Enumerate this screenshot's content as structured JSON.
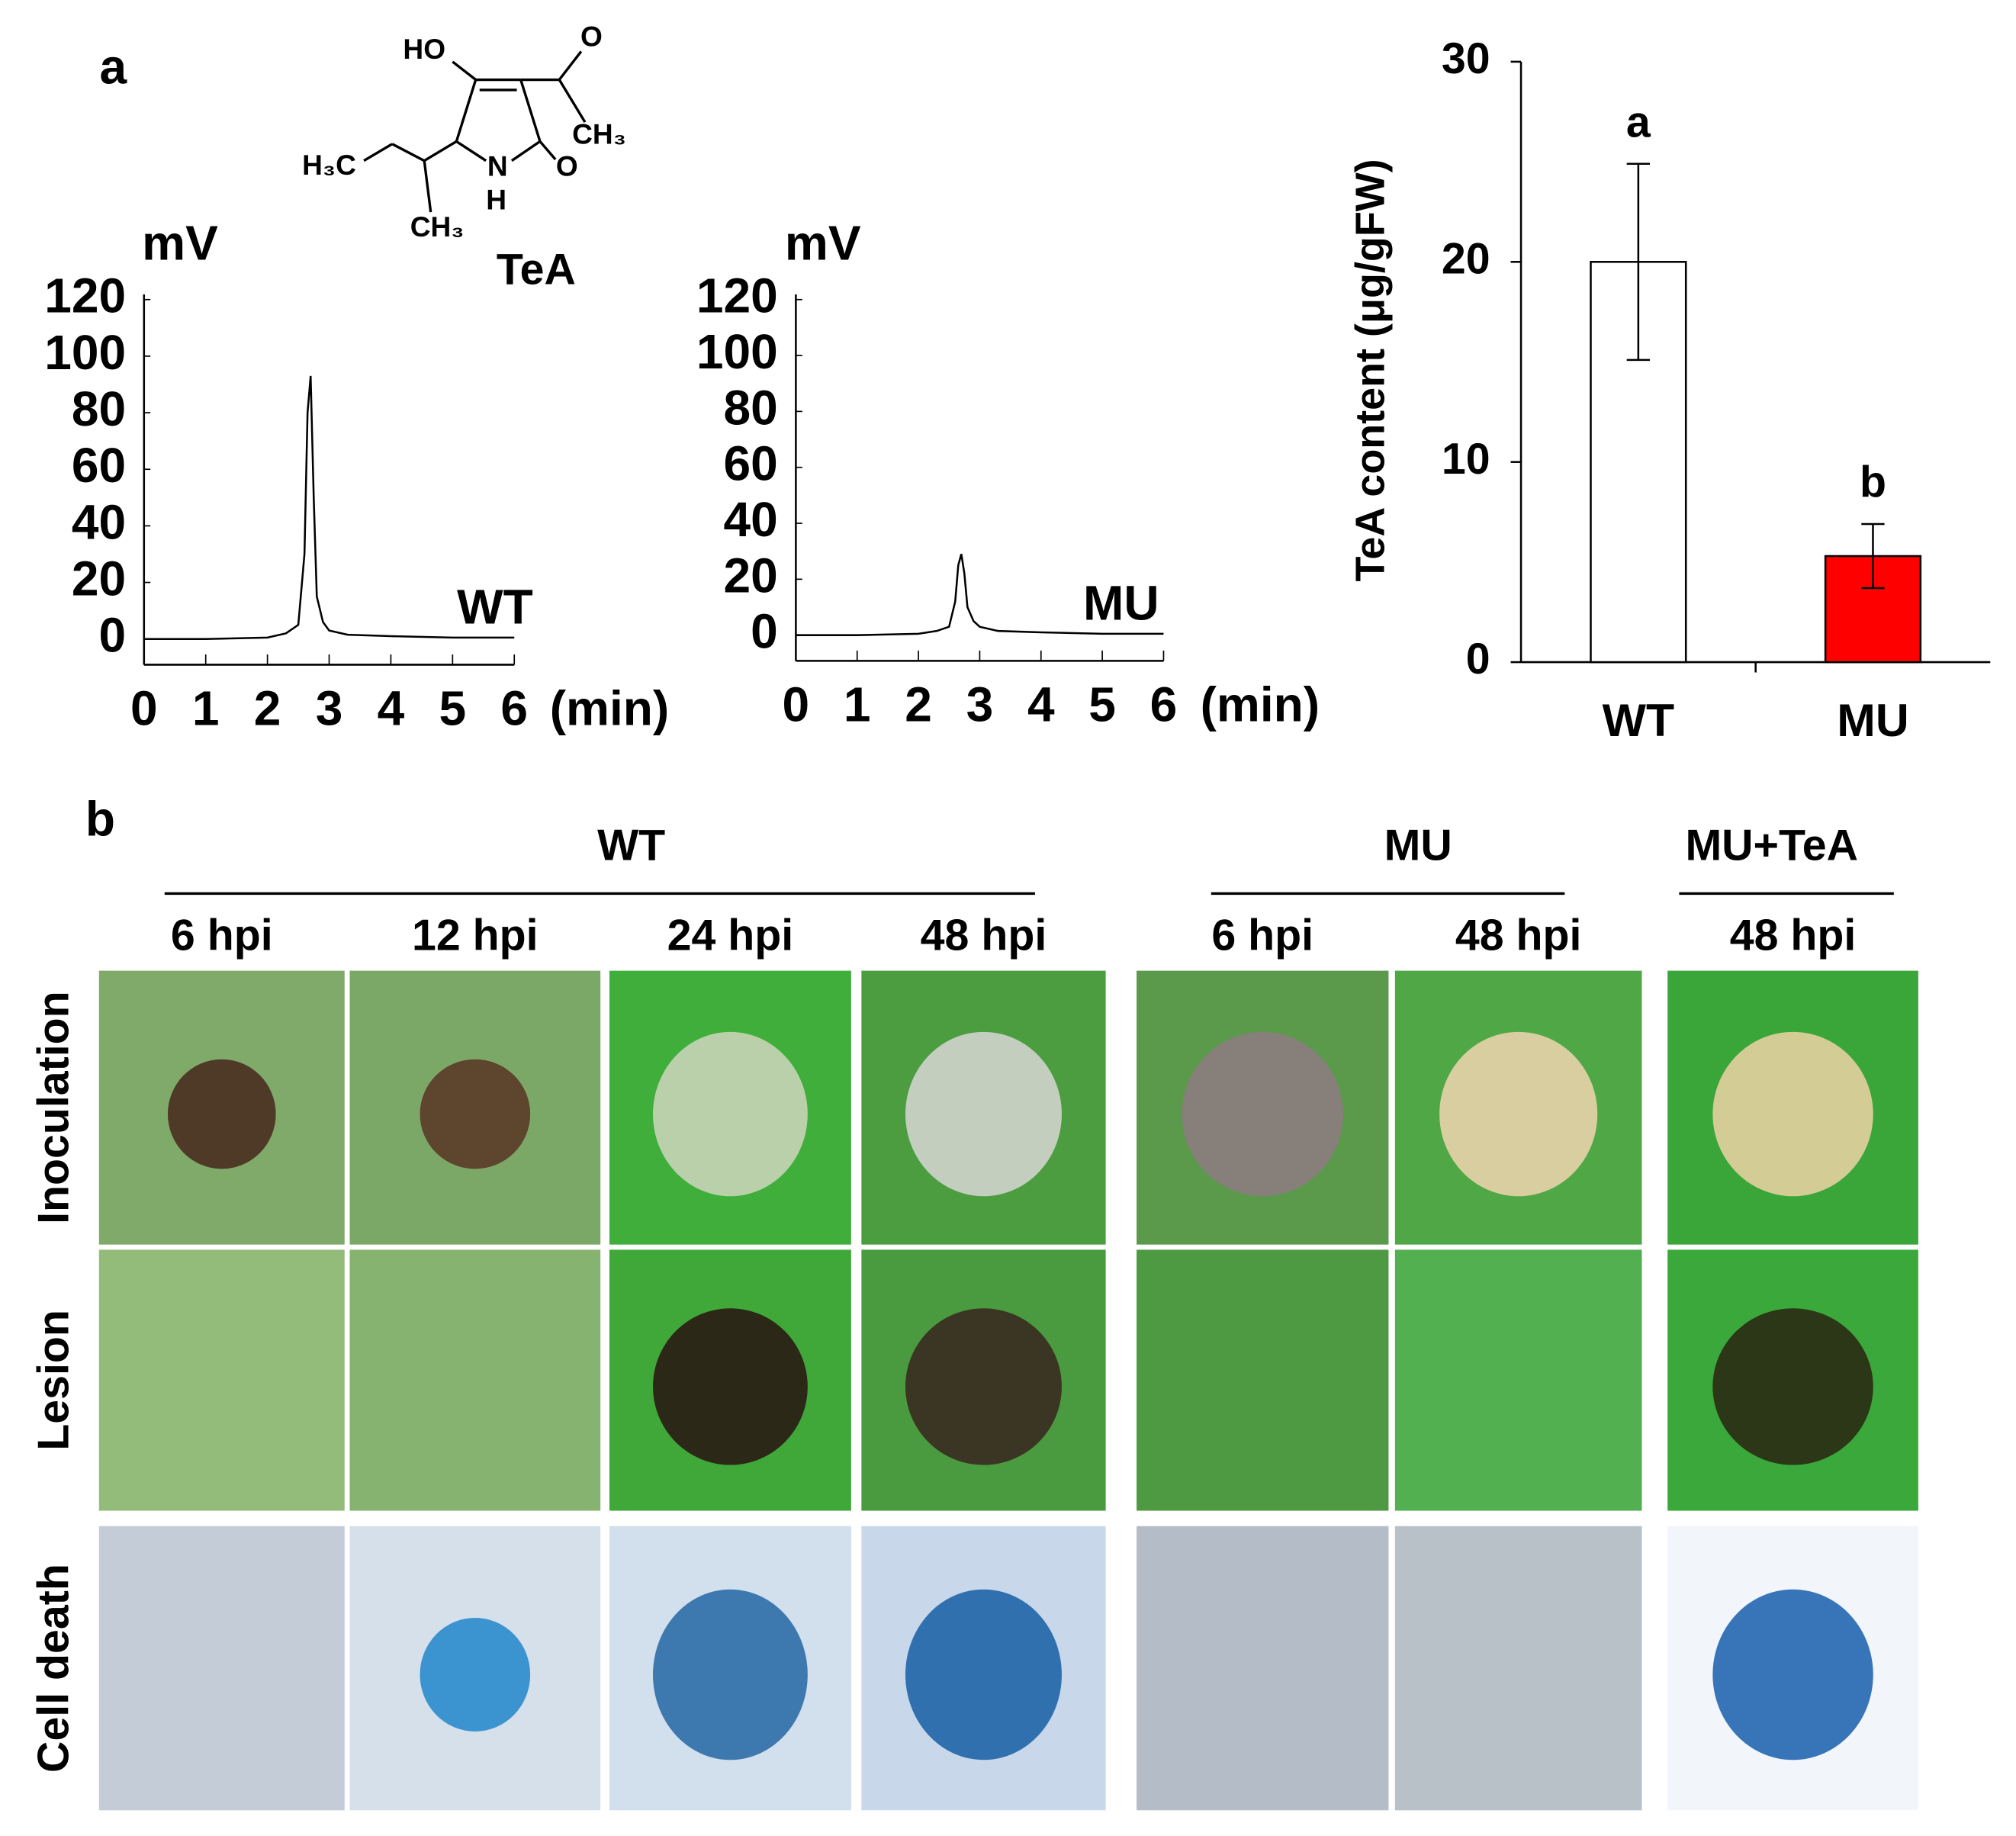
{
  "chart_data": [
    {
      "type": "line",
      "y_label": "mV",
      "x_label": "(min)",
      "annotation": "WT",
      "x": [
        0,
        1,
        2,
        2.3,
        2.5,
        2.6,
        2.65,
        2.7,
        2.75,
        2.8,
        2.9,
        3.0,
        3.3,
        4,
        5,
        6
      ],
      "values": [
        0,
        0,
        0.5,
        2,
        5,
        30,
        80,
        93,
        50,
        15,
        6,
        3,
        1.5,
        1,
        0.5,
        0.5
      ],
      "color": "#000000",
      "xlim": [
        0,
        6
      ],
      "xticks": [
        0,
        1,
        2,
        3,
        4,
        5,
        6
      ],
      "ylim": [
        0,
        120
      ],
      "yticks": [
        0,
        20,
        40,
        60,
        80,
        100,
        120
      ]
    },
    {
      "type": "line",
      "y_label": "mV",
      "x_label": "(min)",
      "annotation": "MU",
      "x": [
        0,
        1,
        2,
        2.3,
        2.5,
        2.6,
        2.65,
        2.7,
        2.75,
        2.8,
        2.9,
        3.0,
        3.3,
        4,
        5,
        6
      ],
      "values": [
        0,
        0,
        0.5,
        1.5,
        3,
        12,
        25,
        29,
        22,
        10,
        5,
        3,
        1.5,
        1,
        0.5,
        0.5
      ],
      "color": "#000000",
      "xlim": [
        0,
        6
      ],
      "xticks": [
        0,
        1,
        2,
        3,
        4,
        5,
        6
      ],
      "ylim": [
        0,
        120
      ],
      "yticks": [
        0,
        20,
        40,
        60,
        80,
        100,
        120
      ]
    },
    {
      "type": "bar",
      "y_label": "TeA content  (μg/gFW)",
      "categories": [
        "WT",
        "MU"
      ],
      "values": [
        20,
        5.3
      ],
      "errors": [
        4.9,
        1.6
      ],
      "colors": [
        "#ffffff",
        "#ff0000"
      ],
      "annotations": [
        "a",
        "b"
      ],
      "ylim": [
        0,
        30
      ],
      "yticks": [
        0,
        10,
        20,
        30
      ]
    }
  ],
  "figure": {
    "panel_labels": [
      "a",
      "b"
    ],
    "structure": [
      "HO",
      "O",
      "CH₃",
      "H₃C",
      "N",
      "H",
      "O",
      "CH₃",
      "TeA"
    ],
    "panel_b": {
      "groups": [
        "WT",
        "MU",
        "MU+TeA"
      ],
      "times": [
        "6 hpi",
        "12 hpi",
        "24 hpi",
        "48 hpi",
        "6 hpi",
        "48 hpi",
        "48 hpi"
      ],
      "rows": [
        "Inoculation",
        "Lesion",
        "Cell death"
      ]
    }
  }
}
